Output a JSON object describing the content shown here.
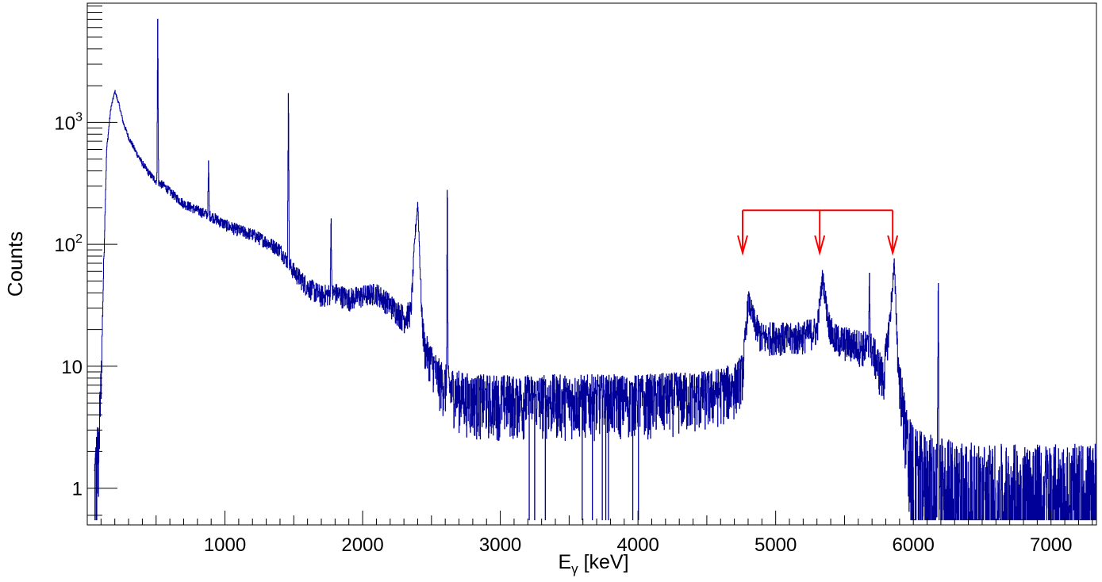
{
  "chart_data": {
    "type": "line",
    "title": "",
    "xlabel": "E",
    "xlabel_sub": "γ",
    "xlabel_unit": "[keV]",
    "ylabel": "Counts",
    "xlim": [
      0,
      7330
    ],
    "ylim": [
      0.5,
      9500
    ],
    "yscale": "log",
    "grid": false,
    "legend": "none",
    "x_ticks": [
      "1000",
      "2000",
      "3000",
      "4000",
      "5000",
      "6000",
      "7000"
    ],
    "x_tick_values": [
      1000,
      2000,
      3000,
      4000,
      5000,
      6000,
      7000
    ],
    "y_ticks": [
      {
        "value": 1,
        "base": "1",
        "exp": ""
      },
      {
        "value": 10,
        "base": "10",
        "exp": ""
      },
      {
        "value": 100,
        "base": "10",
        "exp": "2"
      },
      {
        "value": 1000,
        "base": "10",
        "exp": "3"
      }
    ],
    "series": [
      {
        "color": "#000099",
        "x": [
          50,
          80,
          100,
          120,
          140,
          170,
          200,
          230,
          260,
          300,
          350,
          400,
          450,
          500,
          560,
          600,
          650,
          700,
          800,
          900,
          1000,
          1100,
          1200,
          1300,
          1400,
          1500,
          1600,
          1700,
          1800,
          1900,
          2000,
          2100,
          2200,
          2300,
          2350,
          2380,
          2400,
          2430,
          2450,
          2500,
          2550,
          2600,
          2700,
          2800,
          3000,
          3200,
          3500,
          4000,
          4500,
          4700,
          4760,
          4800,
          4850,
          4900,
          5000,
          5100,
          5200,
          5300,
          5340,
          5380,
          5420,
          5500,
          5600,
          5700,
          5780,
          5830,
          5860,
          5890,
          5950,
          6000,
          6100,
          6200,
          6500,
          7000,
          7330
        ],
        "y": [
          1,
          2,
          8,
          80,
          600,
          1300,
          1800,
          1400,
          1000,
          750,
          580,
          460,
          380,
          330,
          300,
          270,
          240,
          215,
          190,
          170,
          145,
          130,
          120,
          105,
          90,
          60,
          45,
          38,
          40,
          36,
          38,
          40,
          32,
          25,
          28,
          120,
          220,
          25,
          14,
          11,
          8,
          7,
          6,
          5.5,
          5.5,
          5.5,
          5.5,
          5.5,
          6,
          7,
          9,
          35,
          22,
          17,
          18,
          17,
          18,
          20,
          55,
          24,
          17,
          16,
          15,
          14,
          8,
          25,
          70,
          10,
          2.5,
          1.5,
          1.3,
          1.2,
          1,
          1,
          1
        ]
      }
    ],
    "peaks": [
      {
        "x": 511,
        "y": 7800
      },
      {
        "x": 1460,
        "y": 2500
      },
      {
        "x": 2614,
        "y": 480
      },
      {
        "x": 6180,
        "y": 80
      },
      {
        "x": 880,
        "y": 500
      },
      {
        "x": 1770,
        "y": 200
      },
      {
        "x": 5680,
        "y": 65
      }
    ],
    "markers": {
      "color": "#ff0000",
      "bracket_y": 190,
      "tip_y": 85,
      "x": [
        4760,
        5320,
        5850
      ]
    }
  }
}
